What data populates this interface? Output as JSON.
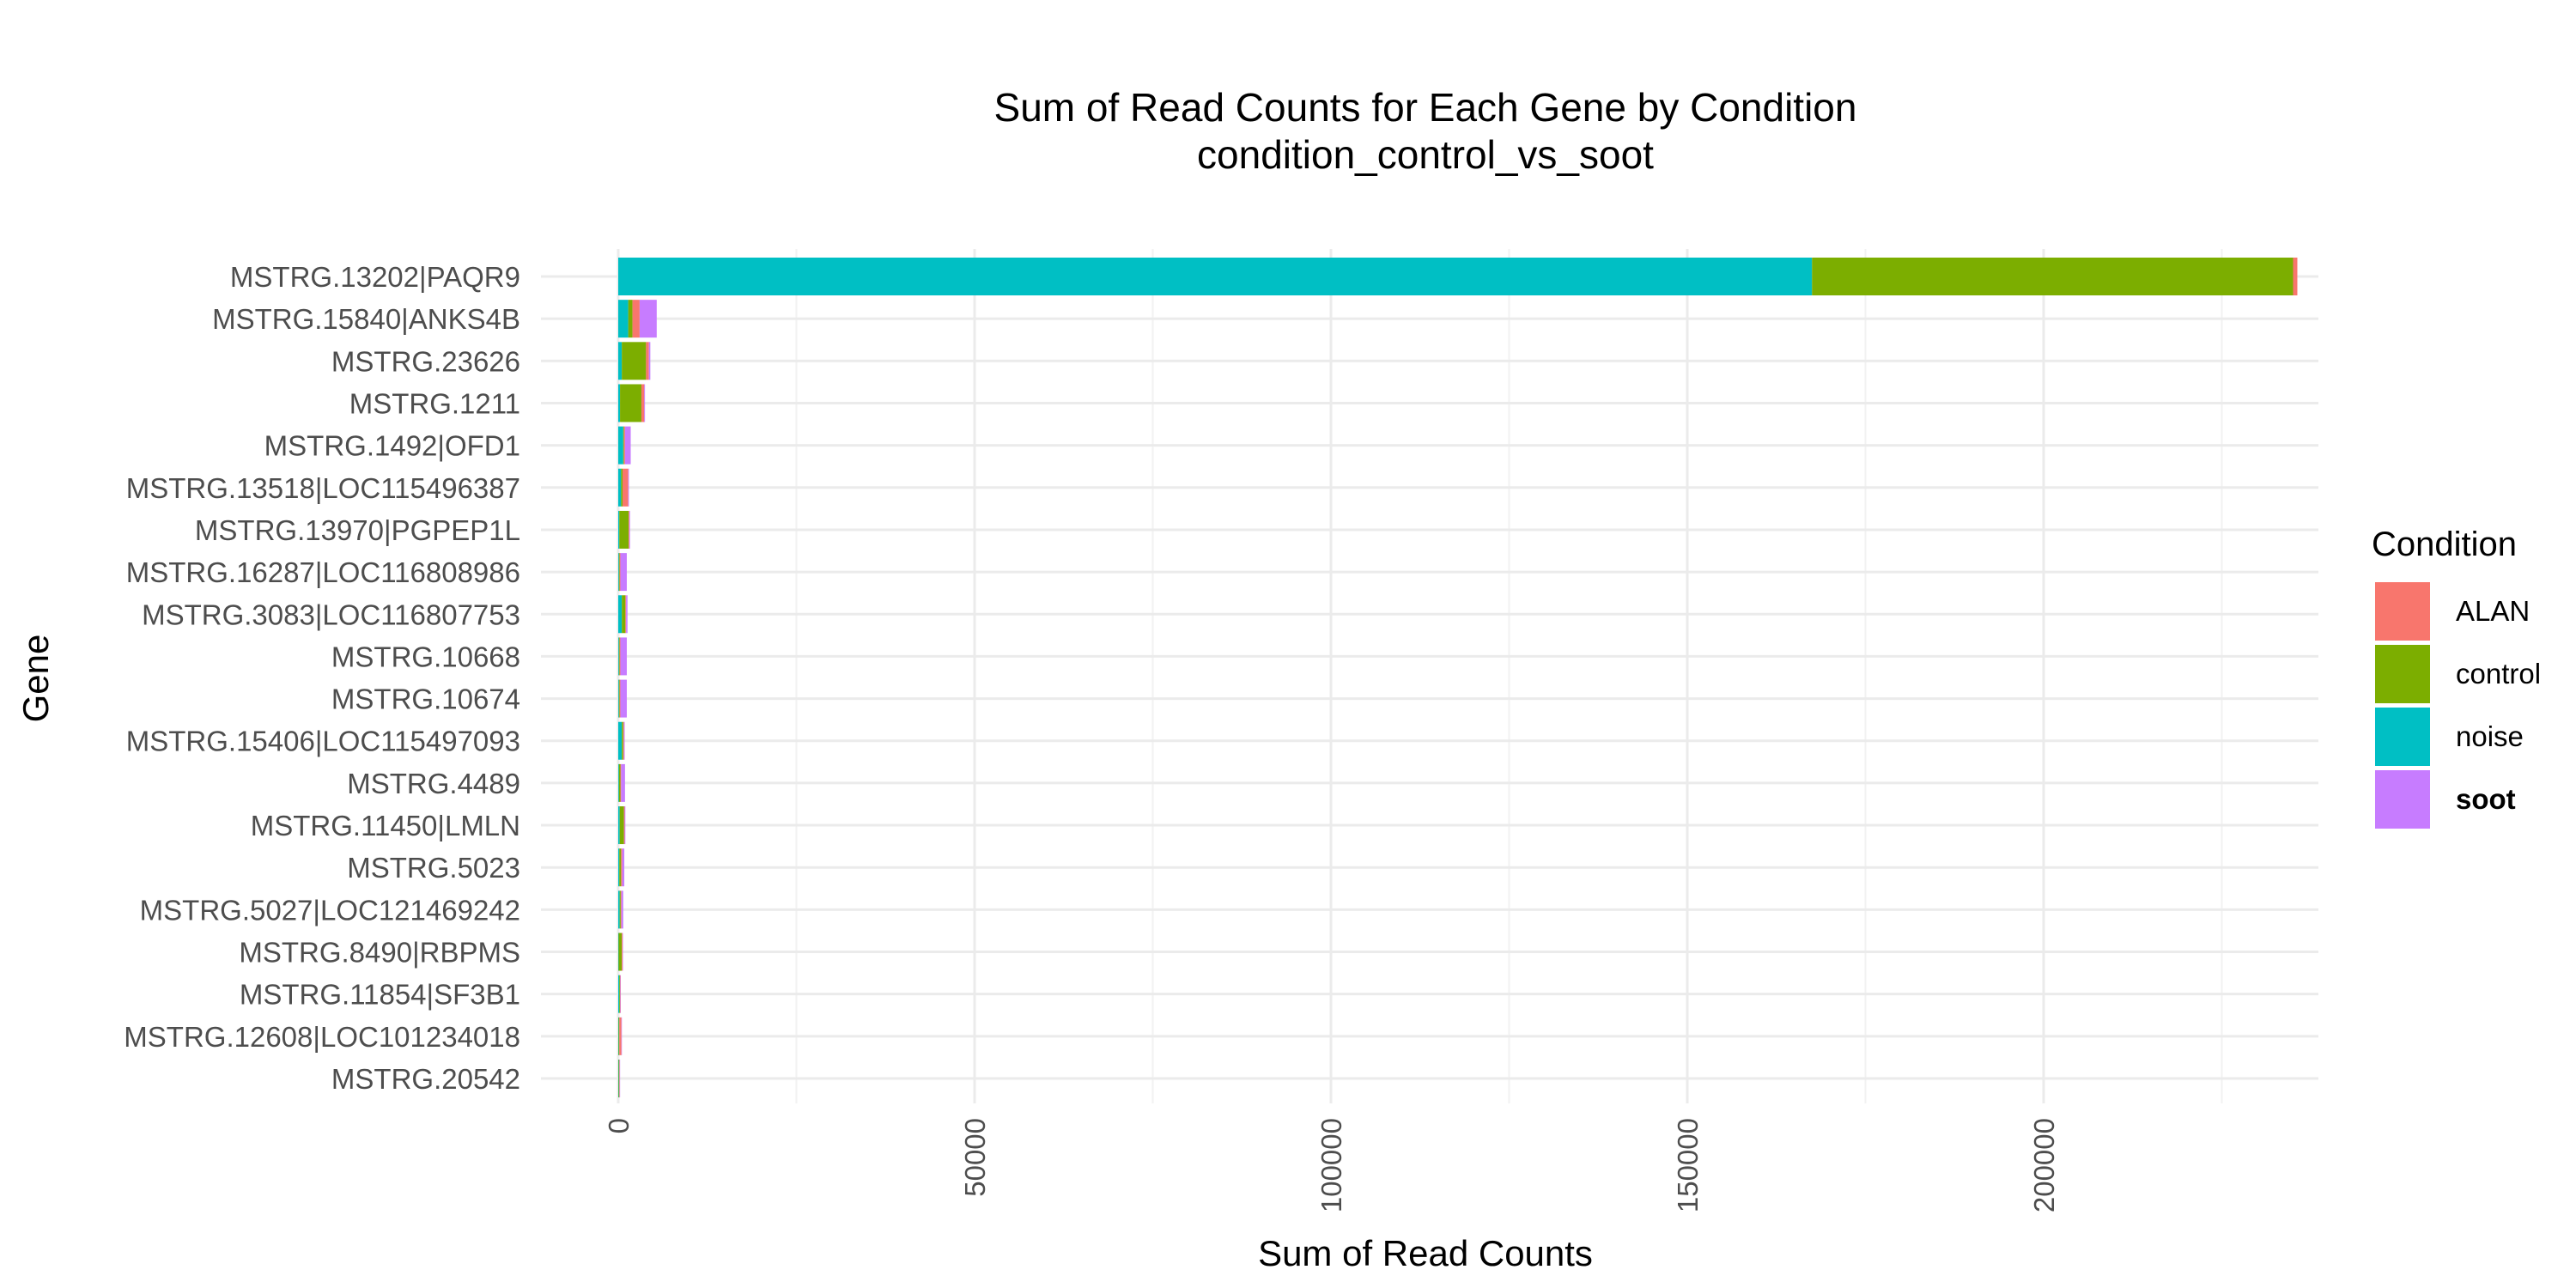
{
  "chart_data": {
    "type": "bar",
    "orientation": "horizontal",
    "stacked": true,
    "title": "Sum of Read Counts for Each Gene by Condition",
    "subtitle": "condition_control_vs_soot",
    "xlabel": "Sum of Read Counts",
    "ylabel": "Gene",
    "xlim": [
      -12000,
      248000
    ],
    "xticks": [
      0,
      50000,
      100000,
      150000,
      200000
    ],
    "grid": true,
    "legend": {
      "title": "Condition",
      "position": "right",
      "entries": [
        {
          "name": "ALAN",
          "color": "#F8766D",
          "bold": false
        },
        {
          "name": "control",
          "color": "#7CAE00",
          "bold": false
        },
        {
          "name": "noise",
          "color": "#00BFC4",
          "bold": false
        },
        {
          "name": "soot",
          "color": "#C77CFF",
          "bold": true
        }
      ]
    },
    "categories": [
      "MSTRG.13202|PAQR9",
      "MSTRG.15840|ANKS4B",
      "MSTRG.23626",
      "MSTRG.1211",
      "MSTRG.1492|OFD1",
      "MSTRG.13518|LOC115496387",
      "MSTRG.13970|PGPEP1L",
      "MSTRG.16287|LOC116808986",
      "MSTRG.3083|LOC116807753",
      "MSTRG.10668",
      "MSTRG.10674",
      "MSTRG.15406|LOC115497093",
      "MSTRG.4489",
      "MSTRG.11450|LMLN",
      "MSTRG.5023",
      "MSTRG.5027|LOC121469242",
      "MSTRG.8490|RBPMS",
      "MSTRG.11854|SF3B1",
      "MSTRG.12608|LOC101234018",
      "MSTRG.20542"
    ],
    "stack_order": [
      "noise",
      "control",
      "ALAN",
      "soot"
    ],
    "series": [
      {
        "name": "ALAN",
        "color": "#F8766D",
        "values": [
          600,
          1000,
          400,
          400,
          150,
          800,
          100,
          100,
          100,
          100,
          100,
          100,
          100,
          100,
          150,
          100,
          100,
          50,
          300,
          50
        ]
      },
      {
        "name": "control",
        "color": "#7CAE00",
        "values": [
          67500,
          600,
          3400,
          3000,
          100,
          200,
          1300,
          100,
          500,
          100,
          100,
          200,
          200,
          600,
          250,
          150,
          450,
          100,
          100,
          100
        ]
      },
      {
        "name": "noise",
        "color": "#00BFC4",
        "values": [
          167500,
          1400,
          500,
          250,
          700,
          400,
          150,
          100,
          500,
          100,
          100,
          500,
          100,
          200,
          150,
          200,
          50,
          150,
          50,
          50
        ]
      },
      {
        "name": "soot",
        "color": "#C77CFF",
        "values": [
          0,
          2400,
          200,
          100,
          800,
          100,
          100,
          900,
          200,
          900,
          900,
          100,
          550,
          100,
          300,
          250,
          50,
          50,
          50,
          50
        ]
      }
    ]
  }
}
